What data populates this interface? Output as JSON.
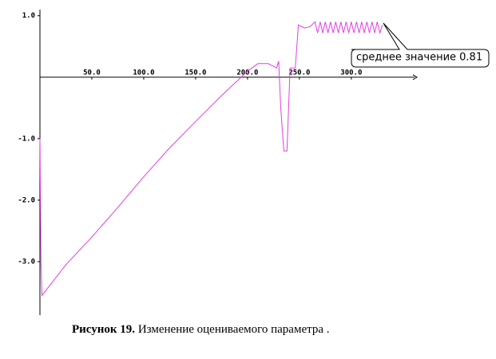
{
  "chart_data": {
    "type": "line",
    "color": "#e040e0",
    "xlim": [
      0,
      364
    ],
    "ylim": [
      -3.87,
      1.1
    ],
    "xticks": [
      {
        "value": 50,
        "label": "50.0"
      },
      {
        "value": 100,
        "label": "100.0"
      },
      {
        "value": 150,
        "label": "150.0"
      },
      {
        "value": 200,
        "label": "200.0"
      },
      {
        "value": 250,
        "label": "250.0"
      },
      {
        "value": 300,
        "label": "300.0"
      }
    ],
    "yticks": [
      {
        "value": 1,
        "label": "1.0"
      },
      {
        "value": -1,
        "label": "-1.0"
      },
      {
        "value": -2,
        "label": "-2.0"
      },
      {
        "value": -3,
        "label": "-3.0"
      }
    ],
    "annotation": "среднее значение 0.81",
    "x": [
      0,
      1,
      2,
      25,
      50,
      75,
      100,
      125,
      150,
      175,
      200,
      210,
      220,
      228,
      230,
      232,
      235,
      238,
      240,
      241,
      246,
      249,
      255,
      260,
      265,
      267.5,
      270,
      272.5,
      275,
      277.5,
      280,
      282.5,
      285,
      287.5,
      290,
      292.5,
      295,
      297.5,
      300,
      302.5,
      305,
      307.5,
      310,
      312.5,
      315,
      317.5,
      320,
      322.5,
      325,
      327.5,
      330
    ],
    "values": [
      -1.0,
      -3.0,
      -3.55,
      -3.05,
      -2.6,
      -2.12,
      -1.62,
      -1.15,
      -0.72,
      -0.3,
      0.1,
      0.22,
      0.22,
      0.15,
      0.26,
      -0.5,
      -1.2,
      -1.2,
      -0.3,
      0.15,
      0.15,
      0.85,
      0.8,
      0.82,
      0.9,
      0.72,
      0.9,
      0.72,
      0.9,
      0.72,
      0.9,
      0.72,
      0.9,
      0.72,
      0.9,
      0.72,
      0.9,
      0.72,
      0.9,
      0.72,
      0.9,
      0.72,
      0.9,
      0.72,
      0.9,
      0.72,
      0.9,
      0.72,
      0.9,
      0.72,
      0.85
    ]
  },
  "caption": {
    "label": "Рисунок 19.",
    "text": "Изменение оцениваемого параметра ."
  }
}
